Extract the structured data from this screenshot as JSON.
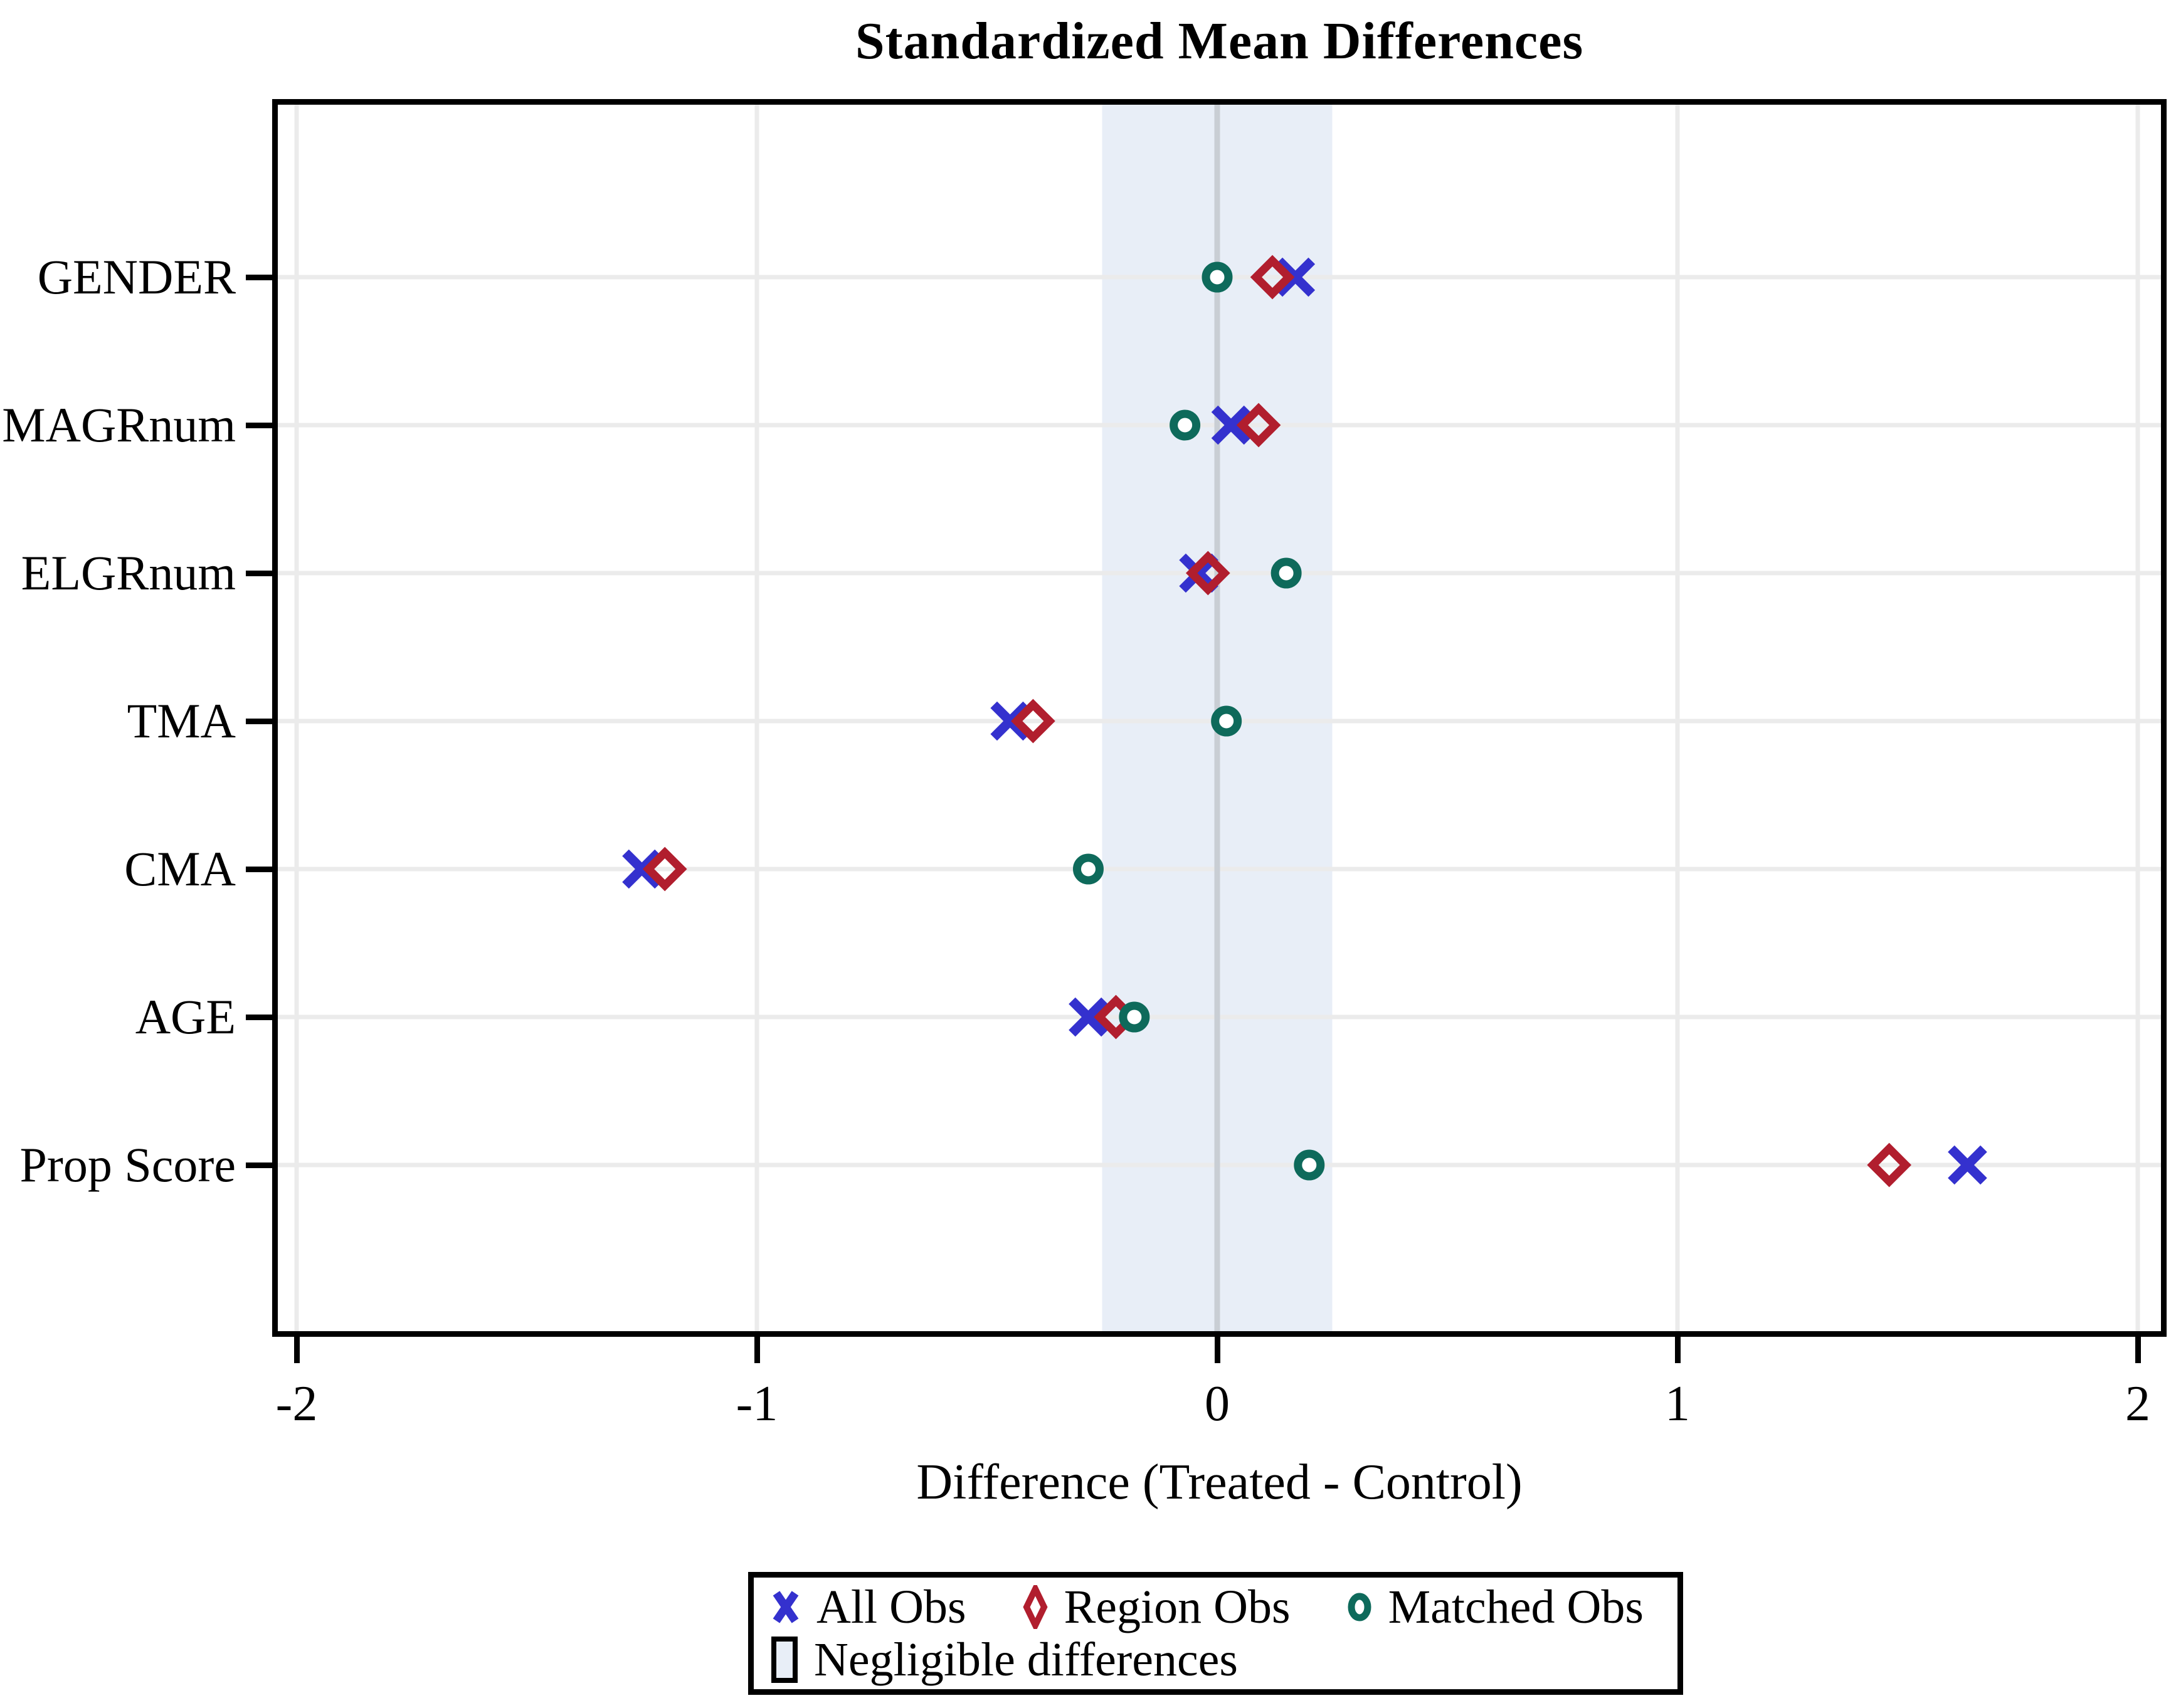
{
  "title": "Standardized Mean Differences",
  "x_axis": {
    "label": "Difference (Treated - Control)",
    "ticks": [
      "-2",
      "-1",
      "0",
      "1",
      "2"
    ],
    "min": -2.05,
    "max": 2.06
  },
  "y_axis": {
    "categories": [
      "GENDER",
      "MAGRnum",
      "ELGRnum",
      "TMA",
      "CMA",
      "AGE",
      "Prop Score"
    ]
  },
  "legend": {
    "items": [
      {
        "label": "All Obs",
        "marker": "x"
      },
      {
        "label": "Region Obs",
        "marker": "diamond"
      },
      {
        "label": "Matched Obs",
        "marker": "circle"
      },
      {
        "label": "Negligible differences",
        "marker": "band"
      }
    ]
  },
  "colors": {
    "all_obs": "#3431ce",
    "region_obs": "#b11e2e",
    "matched_obs": "#0e6a5b",
    "band": "#e8eef7",
    "grid": "#ebebeb",
    "reference_line": "#c9ced4",
    "axis": "#000000"
  },
  "chart_data": {
    "type": "scatter",
    "title": "Standardized Mean Differences",
    "xlabel": "Difference (Treated - Control)",
    "ylabel": "",
    "x_range": [
      -2.05,
      2.06
    ],
    "x_ticks": [
      -2,
      -1,
      0,
      1,
      2
    ],
    "grid": true,
    "legend_position": "bottom",
    "categories": [
      "GENDER",
      "MAGRnum",
      "ELGRnum",
      "TMA",
      "CMA",
      "AGE",
      "Prop Score"
    ],
    "band": {
      "label": "Negligible differences",
      "from": -0.25,
      "to": 0.25
    },
    "series": [
      {
        "name": "All Obs",
        "marker": "x",
        "color": "#3431ce",
        "values": [
          0.17,
          0.03,
          -0.04,
          -0.45,
          -1.25,
          -0.28,
          1.63
        ]
      },
      {
        "name": "Region Obs",
        "marker": "diamond",
        "color": "#b11e2e",
        "values": [
          0.12,
          0.09,
          -0.02,
          -0.4,
          -1.2,
          -0.22,
          1.46
        ]
      },
      {
        "name": "Matched Obs",
        "marker": "circle",
        "color": "#0e6a5b",
        "values": [
          0.0,
          -0.07,
          0.15,
          0.02,
          -0.28,
          -0.18,
          0.2
        ]
      }
    ]
  }
}
